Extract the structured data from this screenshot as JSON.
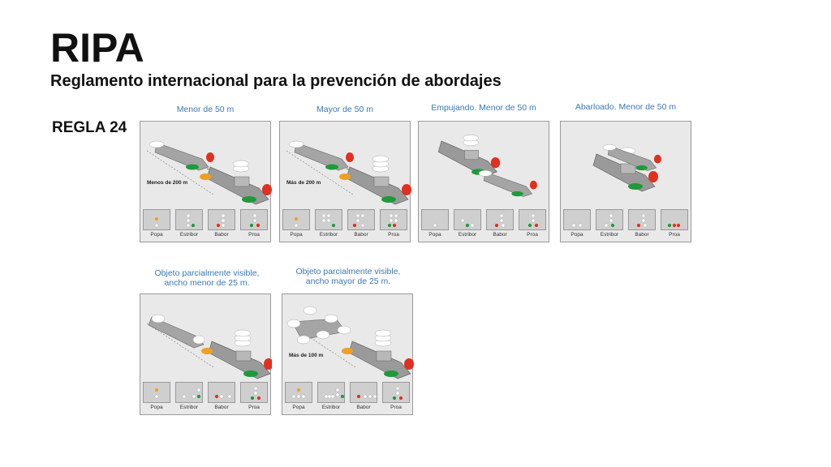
{
  "title": "RIPA",
  "subtitle": "Reglamento internacional para la prevención de abordajes",
  "rule": "REGLA 24",
  "views": [
    "Popa",
    "Estribor",
    "Babor",
    "Proa"
  ],
  "panels": [
    {
      "caption": "Menor de 50 m",
      "distance": "Menos de 200 m"
    },
    {
      "caption": "Mayor de 50 m",
      "distance": "Más de 200 m"
    },
    {
      "caption": "Empujando. Menor de 50 m",
      "distance": ""
    },
    {
      "caption": "Abarloado. Menor de 50 m",
      "distance": ""
    },
    {
      "caption": "Objeto parcialmente visible, ancho menor de 25 m.",
      "distance": ""
    },
    {
      "caption": "Objeto parcialmente visible, ancho mayor de 25 m.",
      "distance": "Más de 100 m"
    }
  ],
  "colors": {
    "caption": "#3a78b5",
    "red": "#e03020",
    "green": "#1e9a3a",
    "yellow": "#f0a020",
    "white": "#ffffff",
    "hull": "#9a9a9a"
  }
}
